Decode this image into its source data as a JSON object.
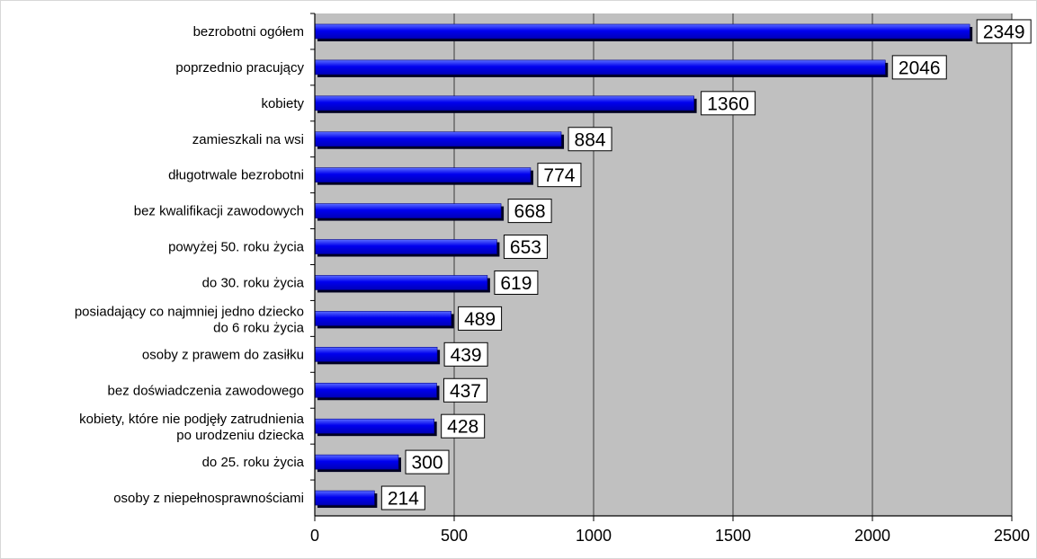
{
  "chart_data": {
    "type": "bar",
    "orientation": "horizontal",
    "categories": [
      "bezrobotni ogółem",
      "poprzednio pracujący",
      "kobiety",
      "zamieszkali na wsi",
      "długotrwale bezrobotni",
      "bez kwalifikacji zawodowych",
      "powyżej 50. roku życia",
      "do 30. roku życia",
      "posiadający co najmniej jedno dziecko\ndo 6 roku życia",
      "osoby z prawem do zasiłku",
      "bez doświadczenia zawodowego",
      "kobiety, które nie podjęły zatrudnienia\npo urodzeniu dziecka",
      "do 25. roku życia",
      "osoby z niepełnosprawnościami"
    ],
    "values": [
      2349,
      2046,
      1360,
      884,
      774,
      668,
      653,
      619,
      489,
      439,
      437,
      428,
      300,
      214
    ],
    "xlim": [
      0,
      2500
    ],
    "xticks": [
      0,
      500,
      1000,
      1500,
      2000,
      2500
    ],
    "grid": "vertical",
    "data_labels": true,
    "legend": "none",
    "colors": {
      "bar": "#0000ee",
      "bar_highlight": "#5a6cff",
      "bar_shadow": "#000022",
      "plot_background": "#c0c0c0",
      "gridline": "#3a3a3a",
      "label_box": "#ffffff"
    }
  }
}
